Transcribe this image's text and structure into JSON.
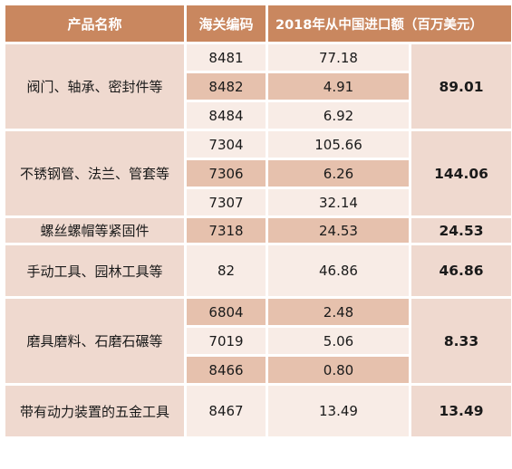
{
  "header": {
    "col_name": "产品名称",
    "col_code": "海关编码",
    "col_value": "2018年从中国进口额（百万美元）"
  },
  "groups": [
    {
      "name": "阀门、轴承、密封件等",
      "total": "89.01",
      "rows": [
        {
          "code": "8481",
          "value": "77.18"
        },
        {
          "code": "8482",
          "value": "4.91"
        },
        {
          "code": "8484",
          "value": "6.92"
        }
      ]
    },
    {
      "name": "不锈钢管、法兰、管套等",
      "total": "144.06",
      "rows": [
        {
          "code": "7304",
          "value": "105.66"
        },
        {
          "code": "7306",
          "value": "6.26"
        },
        {
          "code": "7307",
          "value": "32.14"
        }
      ]
    },
    {
      "name": "螺丝螺帽等紧固件",
      "total": "24.53",
      "rows": [
        {
          "code": "7318",
          "value": "24.53"
        }
      ]
    },
    {
      "name": "手动工具、园林工具等",
      "total": "46.86",
      "rows": [
        {
          "code": "82",
          "value": "46.86"
        }
      ]
    },
    {
      "name": "磨具磨料、石磨石碾等",
      "total": "8.33",
      "rows": [
        {
          "code": "6804",
          "value": "2.48"
        },
        {
          "code": "7019",
          "value": "5.06"
        },
        {
          "code": "8466",
          "value": "0.80"
        }
      ]
    },
    {
      "name": "带有动力装置的五金工具",
      "total": "13.49",
      "rows": [
        {
          "code": "8467",
          "value": "13.49"
        }
      ]
    }
  ]
}
